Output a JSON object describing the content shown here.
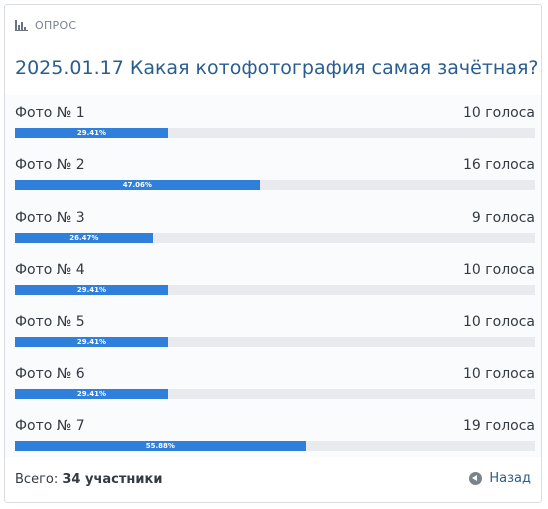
{
  "poll": {
    "header_label": "ОПРОС",
    "title": "2025.01.17 Какая котофотография самая зачётная?",
    "options": [
      {
        "name": "Фото № 1",
        "votes_label": "10 голоса",
        "percent_label": "29.41%",
        "percent": 29.41
      },
      {
        "name": "Фото № 2",
        "votes_label": "16 голоса",
        "percent_label": "47.06%",
        "percent": 47.06
      },
      {
        "name": "Фото № 3",
        "votes_label": "9 голоса",
        "percent_label": "26.47%",
        "percent": 26.47
      },
      {
        "name": "Фото № 4",
        "votes_label": "10 голоса",
        "percent_label": "29.41%",
        "percent": 29.41
      },
      {
        "name": "Фото № 5",
        "votes_label": "10 голоса",
        "percent_label": "29.41%",
        "percent": 29.41
      },
      {
        "name": "Фото № 6",
        "votes_label": "10 голоса",
        "percent_label": "29.41%",
        "percent": 29.41
      },
      {
        "name": "Фото № 7",
        "votes_label": "19 голоса",
        "percent_label": "55.88%",
        "percent": 55.88
      }
    ],
    "total_prefix": "Всего:",
    "total_value": "34 участники",
    "back_label": "Назад",
    "icons": {
      "header": "bar-chart-icon",
      "back": "arrow-left-circle-icon"
    },
    "colors": {
      "bar_fill": "#2f7fdb",
      "bar_track": "#e8eaed",
      "title": "#2a5d8f"
    }
  }
}
